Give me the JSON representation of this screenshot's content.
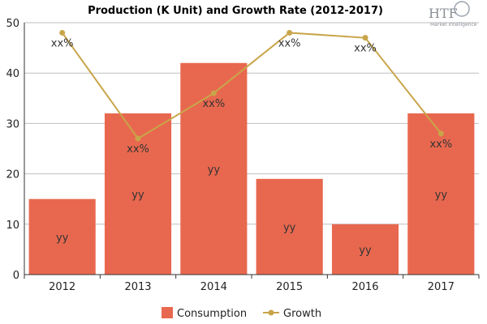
{
  "logo": {
    "brand": "HTF",
    "tagline": "Market Intelligence"
  },
  "chart_data": {
    "type": "bar",
    "title": "Production (K Unit) and Growth Rate (2012-2017)",
    "categories": [
      "2012",
      "2013",
      "2014",
      "2015",
      "2016",
      "2017"
    ],
    "ylim": [
      0,
      50
    ],
    "yticks": [
      0,
      10,
      20,
      30,
      40,
      50
    ],
    "grid": true,
    "legend_position": "bottom-center",
    "series": [
      {
        "name": "Consumption",
        "kind": "bar",
        "color": "#e8684f",
        "values": [
          15,
          32,
          42,
          19,
          10,
          32
        ],
        "labels": [
          "yy",
          "yy",
          "yy",
          "yy",
          "yy",
          "yy"
        ]
      },
      {
        "name": "Growth",
        "kind": "line",
        "color": "#c9a54a",
        "values": [
          48,
          27,
          36,
          48,
          47,
          28
        ],
        "labels": [
          "xx%",
          "xx%",
          "xx%",
          "xx%",
          "xx%",
          "xx%"
        ]
      }
    ]
  }
}
